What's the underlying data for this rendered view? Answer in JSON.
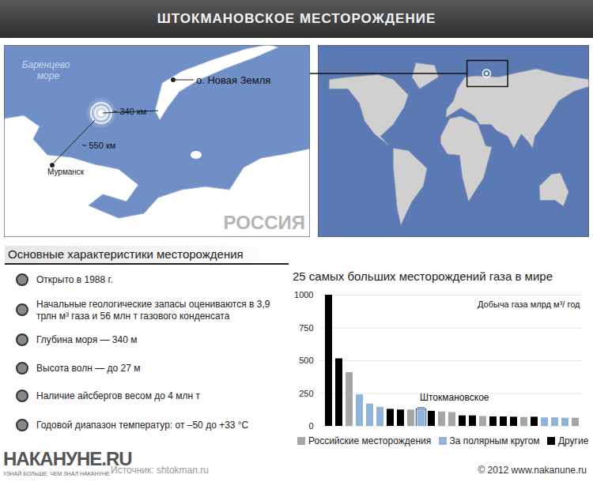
{
  "header": {
    "title": "ШТОКМАНОВСКОЕ МЕСТОРОЖДЕНИЕ"
  },
  "map": {
    "sea_label": "Баренцево море",
    "island_label": "о. Новая Земля",
    "distance_to_island": "~ 340 км",
    "distance_to_murmansk": "~ 550 км",
    "city_label": "Мурманск",
    "country_label": "РОССИЯ"
  },
  "features": {
    "section_title": "Основные характеристики месторождения",
    "items": [
      "Открыто в 1988 г.",
      "Начальные геологические запасы оцениваются в 3,9 трлн м³ газа и 56 млн т газового конденсата",
      "Глубина моря — 340 м",
      "Высота волн — до 27 м",
      "Наличие айсбергов весом до 4 млн т",
      "Годовой диапазон температур: от –50 до +33 °С"
    ]
  },
  "chart_data": {
    "type": "bar",
    "title": "25 самых больших месторождений газа в мире",
    "y_label": "Добыча газа млрд м³/ год",
    "categories": [
      null,
      null,
      null,
      null,
      null,
      null,
      null,
      null,
      null,
      "Штокмановское",
      null,
      null,
      null,
      null,
      null,
      null,
      null,
      null,
      null,
      null,
      null,
      null,
      null,
      null,
      null
    ],
    "series": [
      {
        "name": "Российские месторождения",
        "color": "#a6a6a6",
        "values": [
          null,
          null,
          410,
          null,
          null,
          null,
          null,
          null,
          125,
          null,
          null,
          110,
          105,
          null,
          null,
          75,
          null,
          null,
          null,
          68,
          null,
          null,
          null,
          null,
          62
        ]
      },
      {
        "name": "За полярным кругом",
        "color": "#8fb3d9",
        "values": [
          null,
          null,
          null,
          240,
          170,
          145,
          null,
          null,
          null,
          120,
          null,
          null,
          null,
          null,
          null,
          null,
          null,
          null,
          null,
          null,
          null,
          65,
          65,
          62,
          null
        ]
      },
      {
        "name": "Другие",
        "color": "#000000",
        "values": [
          1000,
          515,
          null,
          null,
          null,
          null,
          130,
          125,
          null,
          null,
          115,
          null,
          null,
          80,
          80,
          null,
          72,
          72,
          70,
          null,
          70,
          null,
          null,
          null,
          null
        ]
      }
    ],
    "ylim": [
      0,
      1000
    ],
    "yticks": [
      0,
      250,
      500,
      750,
      1000
    ],
    "grid": true,
    "legend": "bottom",
    "tick_labels": "y"
  },
  "footer": {
    "logo": "НАКАНУНЕ.RU",
    "tagline": "УЗНАЙ БОЛЬШЕ, ЧЕМ ЗНАЛ НАКАНУНЕ",
    "source": "Источник: shtokman.ru",
    "copyright": "© 2012 www.nakanune.ru"
  }
}
